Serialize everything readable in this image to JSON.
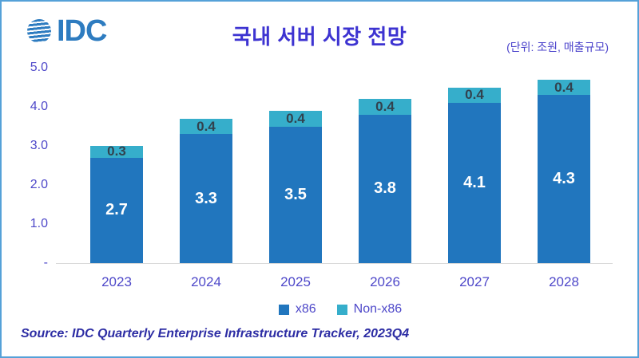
{
  "logo": {
    "text": "IDC",
    "color": "#2E7CC0"
  },
  "header": {
    "title": "국내 서버 시장 전망",
    "unit_label": "(단위: 조원, 매출규모)"
  },
  "chart_data": {
    "type": "bar",
    "stacked": true,
    "title": "국내 서버 시장 전망",
    "categories": [
      "2023",
      "2024",
      "2025",
      "2026",
      "2027",
      "2028"
    ],
    "series": [
      {
        "name": "x86",
        "color": "#2176BE",
        "label_color": "#FFFFFF",
        "values": [
          2.7,
          3.3,
          3.5,
          3.8,
          4.1,
          4.3
        ]
      },
      {
        "name": "Non-x86",
        "color": "#36AECB",
        "label_color": "#32424E",
        "values": [
          0.3,
          0.4,
          0.4,
          0.4,
          0.4,
          0.4
        ]
      }
    ],
    "xlabel": "",
    "ylabel": "",
    "ylim": [
      0,
      5
    ],
    "ytick_values": [
      0,
      1,
      2,
      3,
      4,
      5
    ],
    "ytick_labels": [
      "-",
      "1.0",
      "2.0",
      "3.0",
      "4.0",
      "5.0"
    ],
    "grid": false,
    "legend_position": "bottom",
    "data_labels": true
  },
  "footer": {
    "source": "Source: IDC Quarterly Enterprise Infrastructure Tracker, 2023Q4"
  },
  "theme": {
    "border_color": "#55A1D8",
    "axis_text_color": "#4E48C9",
    "title_color": "#3D33D1",
    "source_color": "#2D2DA4",
    "baseline_color": "#D9D9D9"
  }
}
